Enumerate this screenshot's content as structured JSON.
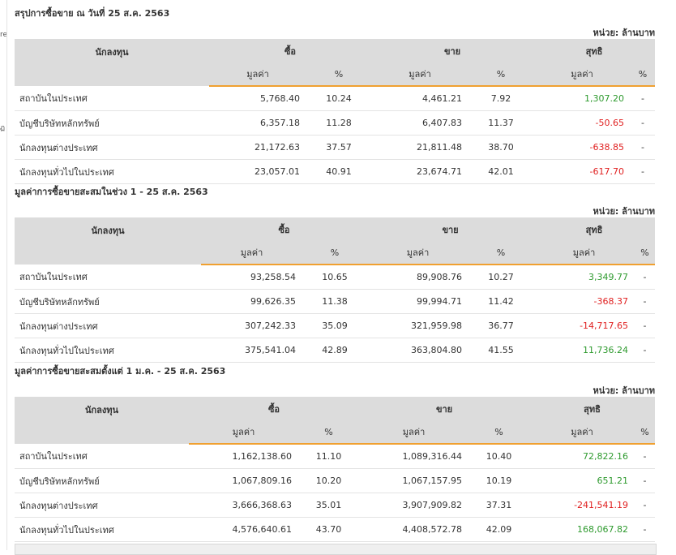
{
  "sidebar": {
    "fragments": [
      "re",
      "ฏ"
    ]
  },
  "unit_label": "หน่วย: ล้านบาท",
  "headers": {
    "investor": "นักลงทุน",
    "buy": "ซื้อ",
    "sell": "ขาย",
    "net": "สุทธิ",
    "value": "มูลค่า",
    "percent": "%"
  },
  "sections": [
    {
      "title": "สรุปการซื้อขาย ณ วันที่ 25 ส.ค. 2563",
      "rows": [
        {
          "name": "สถาบันในประเทศ",
          "buy_value": "5,768.40",
          "buy_pct": "10.24",
          "sell_value": "4,461.21",
          "sell_pct": "7.92",
          "net_value": "1,307.20",
          "net_pct": "-",
          "net_sign": "pos"
        },
        {
          "name": "บัญชีบริษัทหลักทรัพย์",
          "buy_value": "6,357.18",
          "buy_pct": "11.28",
          "sell_value": "6,407.83",
          "sell_pct": "11.37",
          "net_value": "-50.65",
          "net_pct": "-",
          "net_sign": "neg"
        },
        {
          "name": "นักลงทุนต่างประเทศ",
          "buy_value": "21,172.63",
          "buy_pct": "37.57",
          "sell_value": "21,811.48",
          "sell_pct": "38.70",
          "net_value": "-638.85",
          "net_pct": "-",
          "net_sign": "neg"
        },
        {
          "name": "นักลงทุนทั่วไปในประเทศ",
          "buy_value": "23,057.01",
          "buy_pct": "40.91",
          "sell_value": "23,674.71",
          "sell_pct": "42.01",
          "net_value": "-617.70",
          "net_pct": "-",
          "net_sign": "neg"
        }
      ]
    },
    {
      "title": "มูลค่าการซื้อขายสะสมในช่วง 1 - 25 ส.ค. 2563",
      "rows": [
        {
          "name": "สถาบันในประเทศ",
          "buy_value": "93,258.54",
          "buy_pct": "10.65",
          "sell_value": "89,908.76",
          "sell_pct": "10.27",
          "net_value": "3,349.77",
          "net_pct": "-",
          "net_sign": "pos"
        },
        {
          "name": "บัญชีบริษัทหลักทรัพย์",
          "buy_value": "99,626.35",
          "buy_pct": "11.38",
          "sell_value": "99,994.71",
          "sell_pct": "11.42",
          "net_value": "-368.37",
          "net_pct": "-",
          "net_sign": "neg"
        },
        {
          "name": "นักลงทุนต่างประเทศ",
          "buy_value": "307,242.33",
          "buy_pct": "35.09",
          "sell_value": "321,959.98",
          "sell_pct": "36.77",
          "net_value": "-14,717.65",
          "net_pct": "-",
          "net_sign": "neg"
        },
        {
          "name": "นักลงทุนทั่วไปในประเทศ",
          "buy_value": "375,541.04",
          "buy_pct": "42.89",
          "sell_value": "363,804.80",
          "sell_pct": "41.55",
          "net_value": "11,736.24",
          "net_pct": "-",
          "net_sign": "pos"
        }
      ]
    },
    {
      "title": "มูลค่าการซื้อขายสะสมตั้งแต่ 1 ม.ค. - 25 ส.ค. 2563",
      "rows": [
        {
          "name": "สถาบันในประเทศ",
          "buy_value": "1,162,138.60",
          "buy_pct": "11.10",
          "sell_value": "1,089,316.44",
          "sell_pct": "10.40",
          "net_value": "72,822.16",
          "net_pct": "-",
          "net_sign": "pos"
        },
        {
          "name": "บัญชีบริษัทหลักทรัพย์",
          "buy_value": "1,067,809.16",
          "buy_pct": "10.20",
          "sell_value": "1,067,157.95",
          "sell_pct": "10.19",
          "net_value": "651.21",
          "net_pct": "-",
          "net_sign": "pos"
        },
        {
          "name": "นักลงทุนต่างประเทศ",
          "buy_value": "3,666,368.63",
          "buy_pct": "35.01",
          "sell_value": "3,907,909.82",
          "sell_pct": "37.31",
          "net_value": "-241,541.19",
          "net_pct": "-",
          "net_sign": "neg"
        },
        {
          "name": "นักลงทุนทั่วไปในประเทศ",
          "buy_value": "4,576,640.61",
          "buy_pct": "43.70",
          "sell_value": "4,408,572.78",
          "sell_pct": "42.09",
          "net_value": "168,067.82",
          "net_pct": "-",
          "net_sign": "pos"
        }
      ]
    }
  ],
  "colors": {
    "positive": "#2e9a2e",
    "negative": "#e02020",
    "accent": "#f0a030",
    "header_bg": "#dcdcdc"
  }
}
